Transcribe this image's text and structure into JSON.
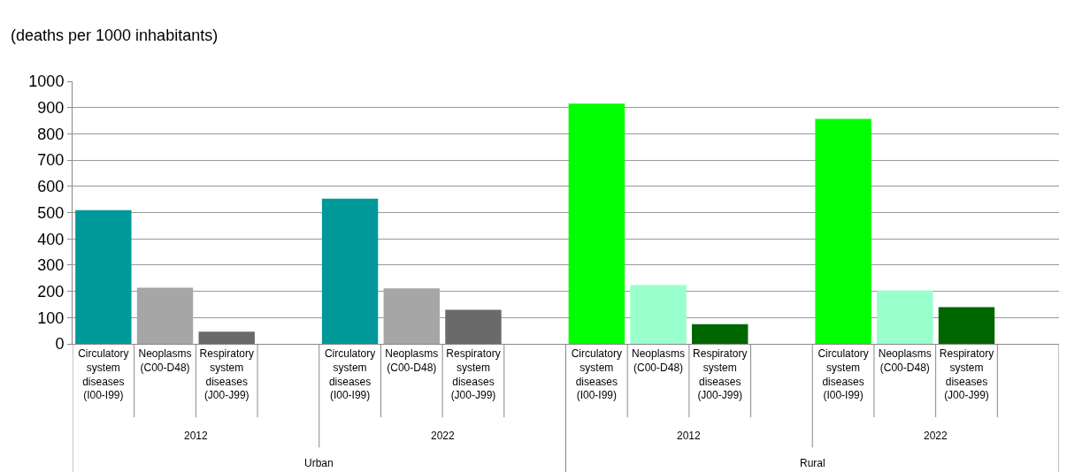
{
  "chart_data": {
    "type": "bar",
    "ylabel": "(deaths per 1000 inhabitants)",
    "categories": [
      "Circulatory system diseases (I00-I99)",
      "Neoplasms (C00-D48)",
      "Respiratory system diseases (J00-J99)",
      null,
      "Circulatory system diseases (I00-I99)",
      "Neoplasms (C00-D48)",
      "Respiratory system diseases (J00-J99)",
      null,
      "Circulatory system diseases (I00-I99)",
      "Neoplasms (C00-D48)",
      "Respiratory system diseases (J00-J99)",
      null,
      "Circulatory system diseases (I00-I99)",
      "Neoplasms (C00-D48)",
      "Respiratory system diseases (J00-J99)",
      null
    ],
    "values": [
      509,
      214,
      46,
      null,
      553,
      211,
      130,
      null,
      915,
      224,
      75,
      null,
      857,
      204,
      140,
      null
    ],
    "colors": [
      "#009999",
      "#a6a6a6",
      "#6a6a6a",
      "#ffffff",
      "#009999",
      "#a6a6a6",
      "#6a6a6a",
      "#ffffff",
      "#00ff00",
      "#99ffcc",
      "#006600",
      "#ffffff",
      "#00ff00",
      "#99ffcc",
      "#006600",
      "#ffffff"
    ],
    "annotations": [
      "2012",
      "2022",
      "2012",
      "2022",
      "Urban",
      "Rural"
    ],
    "ylim": [
      0,
      1000
    ],
    "yticks": [
      0,
      100,
      200,
      300,
      400,
      500,
      600,
      700,
      800,
      900,
      1000
    ],
    "grid": "y"
  }
}
